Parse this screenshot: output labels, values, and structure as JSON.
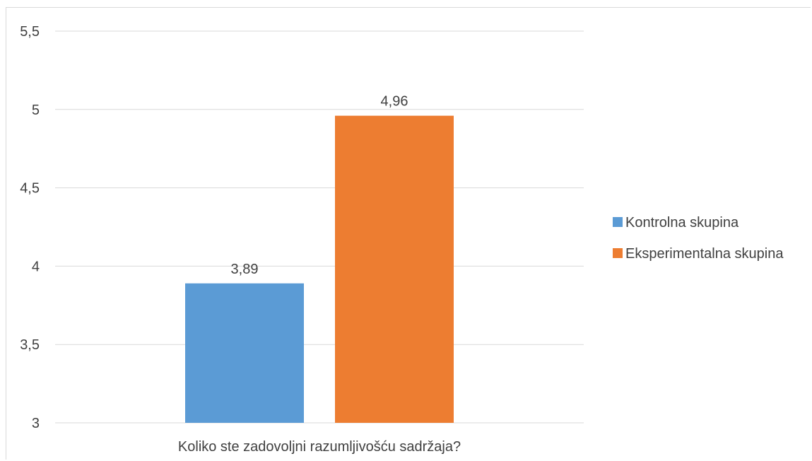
{
  "chart_data": {
    "type": "bar",
    "title": "",
    "xlabel": "",
    "ylabel": "",
    "categories": [
      "Koliko ste zadovoljni razumljivošću sadržaja?"
    ],
    "series": [
      {
        "name": "Kontrolna skupina",
        "values": [
          3.89
        ],
        "value_labels": [
          "3,89"
        ],
        "color": "#5b9bd5"
      },
      {
        "name": "Eksperimentalna skupina",
        "values": [
          4.96
        ],
        "value_labels": [
          "4,96"
        ],
        "color": "#ed7d31"
      }
    ],
    "ylim": [
      3,
      5.5
    ],
    "yticks": [
      3,
      3.5,
      4,
      4.5,
      5,
      5.5
    ],
    "ytick_labels": [
      "3",
      "3,5",
      "4",
      "4,5",
      "5",
      "5,5"
    ],
    "grid": true,
    "legend": "right",
    "colors": {
      "grid": "#d9d9d9",
      "text": "#404040"
    }
  }
}
